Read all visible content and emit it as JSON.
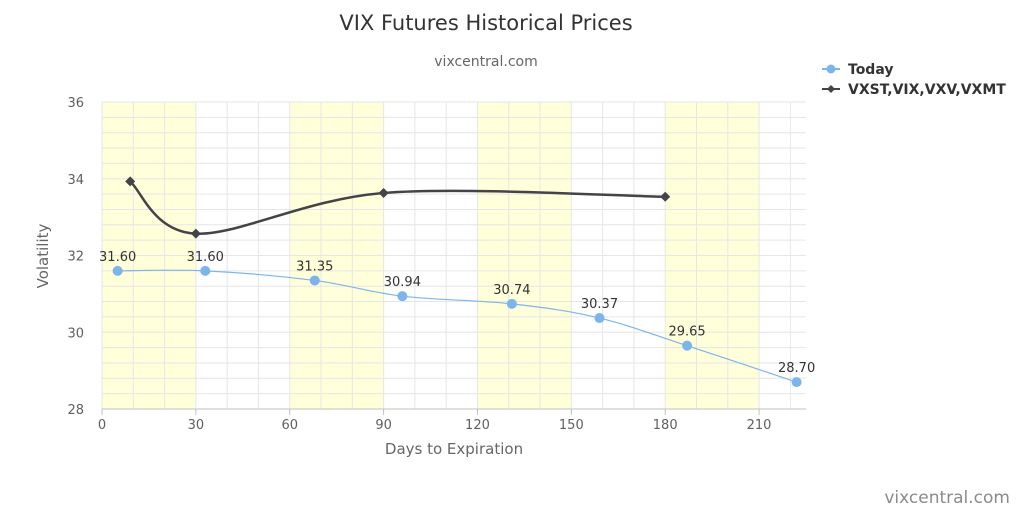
{
  "chart_data": {
    "type": "line",
    "title": "VIX Futures Historical Prices",
    "subtitle": "vixcentral.com",
    "xlabel": "Days to Expiration",
    "ylabel": "Volatility",
    "xlim": [
      0,
      225
    ],
    "ylim": [
      28,
      36
    ],
    "x_ticks": [
      0,
      30,
      60,
      90,
      120,
      150,
      180,
      210
    ],
    "y_ticks": [
      28,
      30,
      32,
      34,
      36
    ],
    "shaded_bands": [
      [
        0,
        30
      ],
      [
        60,
        90
      ],
      [
        120,
        150
      ],
      [
        180,
        210
      ]
    ],
    "band_color": "#ffffd9",
    "grid": true,
    "legend_position": "top-right",
    "series": [
      {
        "name": "Today",
        "color": "#7cb5ec",
        "marker": "circle",
        "x": [
          5,
          33,
          68,
          96,
          131,
          159,
          187,
          222
        ],
        "y": [
          31.6,
          31.6,
          31.35,
          30.94,
          30.74,
          30.37,
          29.65,
          28.7
        ],
        "labels": [
          "31.60",
          "31.60",
          "31.35",
          "30.94",
          "30.74",
          "30.37",
          "29.65",
          "28.70"
        ]
      },
      {
        "name": "VXST,VIX,VXV,VXMT",
        "color": "#434348",
        "marker": "diamond",
        "x": [
          9,
          30,
          90,
          180
        ],
        "y": [
          33.93,
          32.57,
          33.63,
          33.53
        ]
      }
    ]
  },
  "watermark": "vixcentral.com"
}
